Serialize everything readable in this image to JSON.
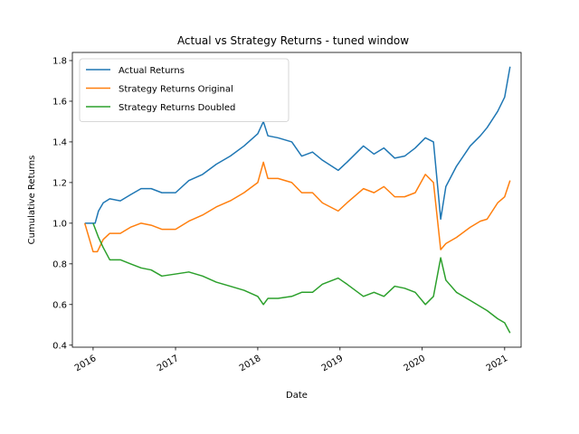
{
  "chart_data": {
    "type": "line",
    "title": "Actual vs Strategy Returns - tuned window",
    "xlabel": "Date",
    "ylabel": "Cumulative Returns",
    "xlim": [
      "2015-10-01",
      "2021-03-15"
    ],
    "ylim": [
      0.39,
      1.84
    ],
    "x_ticks": [
      "2016-01-01",
      "2017-01-01",
      "2018-01-01",
      "2019-01-01",
      "2020-01-01",
      "2021-01-01"
    ],
    "x_tick_labels": [
      "2016",
      "2017",
      "2018",
      "2019",
      "2020",
      "2021"
    ],
    "y_ticks": [
      0.4,
      0.6,
      0.8,
      1.0,
      1.2,
      1.4,
      1.6,
      1.8
    ],
    "y_tick_labels": [
      "0.4",
      "0.6",
      "0.8",
      "1.0",
      "1.2",
      "1.4",
      "1.6",
      "1.8"
    ],
    "grid": false,
    "legend_position": "top-left",
    "series": [
      {
        "name": "Actual Returns",
        "color": "#1f77b4",
        "points": [
          [
            "2015-11-25",
            1.0
          ],
          [
            "2016-01-10",
            1.0
          ],
          [
            "2016-01-25",
            1.06
          ],
          [
            "2016-02-15",
            1.1
          ],
          [
            "2016-03-15",
            1.12
          ],
          [
            "2016-05-01",
            1.11
          ],
          [
            "2016-06-15",
            1.14
          ],
          [
            "2016-08-01",
            1.17
          ],
          [
            "2016-09-15",
            1.17
          ],
          [
            "2016-11-01",
            1.15
          ],
          [
            "2017-01-01",
            1.15
          ],
          [
            "2017-03-01",
            1.21
          ],
          [
            "2017-05-01",
            1.24
          ],
          [
            "2017-07-01",
            1.29
          ],
          [
            "2017-09-01",
            1.33
          ],
          [
            "2017-11-01",
            1.38
          ],
          [
            "2018-01-01",
            1.44
          ],
          [
            "2018-01-26",
            1.5
          ],
          [
            "2018-02-15",
            1.43
          ],
          [
            "2018-04-01",
            1.42
          ],
          [
            "2018-06-01",
            1.4
          ],
          [
            "2018-07-15",
            1.33
          ],
          [
            "2018-09-01",
            1.35
          ],
          [
            "2018-10-15",
            1.31
          ],
          [
            "2018-12-24",
            1.26
          ],
          [
            "2019-02-01",
            1.3
          ],
          [
            "2019-04-15",
            1.38
          ],
          [
            "2019-06-01",
            1.34
          ],
          [
            "2019-07-15",
            1.37
          ],
          [
            "2019-09-01",
            1.32
          ],
          [
            "2019-10-15",
            1.33
          ],
          [
            "2019-12-01",
            1.37
          ],
          [
            "2020-01-15",
            1.42
          ],
          [
            "2020-02-20",
            1.4
          ],
          [
            "2020-03-23",
            1.02
          ],
          [
            "2020-04-15",
            1.18
          ],
          [
            "2020-06-01",
            1.28
          ],
          [
            "2020-08-01",
            1.38
          ],
          [
            "2020-09-15",
            1.43
          ],
          [
            "2020-10-15",
            1.47
          ],
          [
            "2020-12-01",
            1.55
          ],
          [
            "2021-01-01",
            1.62
          ],
          [
            "2021-01-25",
            1.77
          ]
        ]
      },
      {
        "name": "Strategy Returns Original",
        "color": "#ff7f0e",
        "points": [
          [
            "2015-11-25",
            1.0
          ],
          [
            "2016-01-01",
            0.86
          ],
          [
            "2016-01-20",
            0.86
          ],
          [
            "2016-02-15",
            0.92
          ],
          [
            "2016-03-15",
            0.95
          ],
          [
            "2016-05-01",
            0.95
          ],
          [
            "2016-06-15",
            0.98
          ],
          [
            "2016-08-01",
            1.0
          ],
          [
            "2016-09-15",
            0.99
          ],
          [
            "2016-11-01",
            0.97
          ],
          [
            "2017-01-01",
            0.97
          ],
          [
            "2017-03-01",
            1.01
          ],
          [
            "2017-05-01",
            1.04
          ],
          [
            "2017-07-01",
            1.08
          ],
          [
            "2017-09-01",
            1.11
          ],
          [
            "2017-11-01",
            1.15
          ],
          [
            "2018-01-01",
            1.2
          ],
          [
            "2018-01-26",
            1.3
          ],
          [
            "2018-02-15",
            1.22
          ],
          [
            "2018-04-01",
            1.22
          ],
          [
            "2018-06-01",
            1.2
          ],
          [
            "2018-07-15",
            1.15
          ],
          [
            "2018-09-01",
            1.15
          ],
          [
            "2018-10-15",
            1.1
          ],
          [
            "2018-12-24",
            1.06
          ],
          [
            "2019-02-01",
            1.1
          ],
          [
            "2019-04-15",
            1.17
          ],
          [
            "2019-06-01",
            1.15
          ],
          [
            "2019-07-15",
            1.18
          ],
          [
            "2019-09-01",
            1.13
          ],
          [
            "2019-10-15",
            1.13
          ],
          [
            "2019-12-01",
            1.15
          ],
          [
            "2020-01-15",
            1.24
          ],
          [
            "2020-02-20",
            1.2
          ],
          [
            "2020-03-23",
            0.87
          ],
          [
            "2020-04-15",
            0.9
          ],
          [
            "2020-06-01",
            0.93
          ],
          [
            "2020-08-01",
            0.98
          ],
          [
            "2020-09-15",
            1.01
          ],
          [
            "2020-10-15",
            1.02
          ],
          [
            "2020-12-01",
            1.1
          ],
          [
            "2021-01-01",
            1.13
          ],
          [
            "2021-01-25",
            1.21
          ]
        ]
      },
      {
        "name": "Strategy Returns Doubled",
        "color": "#2ca02c",
        "points": [
          [
            "2016-01-01",
            1.0
          ],
          [
            "2016-01-25",
            0.93
          ],
          [
            "2016-02-15",
            0.88
          ],
          [
            "2016-03-15",
            0.82
          ],
          [
            "2016-05-01",
            0.82
          ],
          [
            "2016-06-15",
            0.8
          ],
          [
            "2016-08-01",
            0.78
          ],
          [
            "2016-09-15",
            0.77
          ],
          [
            "2016-11-01",
            0.74
          ],
          [
            "2017-01-01",
            0.75
          ],
          [
            "2017-03-01",
            0.76
          ],
          [
            "2017-05-01",
            0.74
          ],
          [
            "2017-07-01",
            0.71
          ],
          [
            "2017-09-01",
            0.69
          ],
          [
            "2017-11-01",
            0.67
          ],
          [
            "2018-01-01",
            0.64
          ],
          [
            "2018-01-26",
            0.6
          ],
          [
            "2018-02-15",
            0.63
          ],
          [
            "2018-04-01",
            0.63
          ],
          [
            "2018-06-01",
            0.64
          ],
          [
            "2018-07-15",
            0.66
          ],
          [
            "2018-09-01",
            0.66
          ],
          [
            "2018-10-15",
            0.7
          ],
          [
            "2018-12-24",
            0.73
          ],
          [
            "2019-02-01",
            0.7
          ],
          [
            "2019-04-15",
            0.64
          ],
          [
            "2019-06-01",
            0.66
          ],
          [
            "2019-07-15",
            0.64
          ],
          [
            "2019-09-01",
            0.69
          ],
          [
            "2019-10-15",
            0.68
          ],
          [
            "2019-12-01",
            0.66
          ],
          [
            "2020-01-15",
            0.6
          ],
          [
            "2020-02-20",
            0.64
          ],
          [
            "2020-03-23",
            0.83
          ],
          [
            "2020-04-15",
            0.72
          ],
          [
            "2020-06-01",
            0.66
          ],
          [
            "2020-08-01",
            0.62
          ],
          [
            "2020-09-15",
            0.59
          ],
          [
            "2020-10-15",
            0.57
          ],
          [
            "2020-12-01",
            0.53
          ],
          [
            "2021-01-01",
            0.51
          ],
          [
            "2021-01-25",
            0.46
          ]
        ]
      }
    ]
  }
}
